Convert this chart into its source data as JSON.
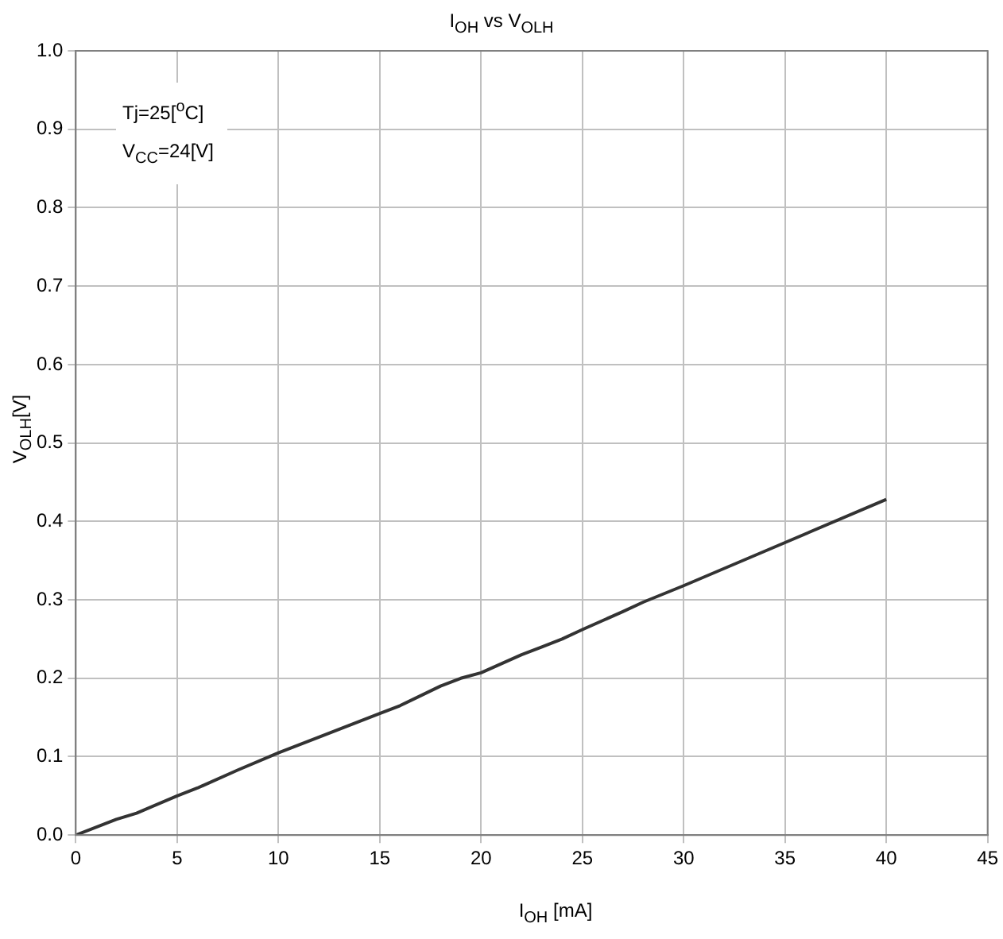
{
  "chart_data": {
    "type": "line",
    "title": "I$_{OH}$ vs V$_{OLH}$",
    "xlabel": "I$_{OH}$ [mA]",
    "ylabel": "V$_{OLH}$[V]",
    "annotations": [
      "Tj=25[$^{o}$C]",
      "V$_{CC}$=24[V]"
    ],
    "x": [
      0,
      2,
      3,
      5,
      6,
      8,
      10,
      12,
      15,
      16,
      18,
      19,
      20,
      22,
      23,
      24,
      25,
      27,
      28,
      30,
      35,
      40
    ],
    "series": [
      {
        "color": "#333333",
        "values": [
          0,
          0.02,
          0.028,
          0.05,
          0.06,
          0.083,
          0.105,
          0.125,
          0.155,
          0.165,
          0.19,
          0.2,
          0.207,
          0.23,
          0.24,
          0.25,
          0.262,
          0.285,
          0.297,
          0.318,
          0.373,
          0.428
        ]
      }
    ],
    "xlim": [
      0,
      45
    ],
    "xticks": [
      0,
      5,
      10,
      15,
      20,
      25,
      30,
      35,
      40,
      45
    ],
    "ylim": [
      0,
      1
    ],
    "yticks": [
      {
        "value": 0,
        "label": "0.0"
      },
      0.1,
      0.2,
      0.3,
      0.4,
      0.5,
      0.6,
      0.7,
      0.8,
      0.9,
      {
        "value": 1,
        "label": "1.0"
      }
    ],
    "grid": true,
    "legend": false,
    "marker": "none",
    "line_style": "solid"
  }
}
